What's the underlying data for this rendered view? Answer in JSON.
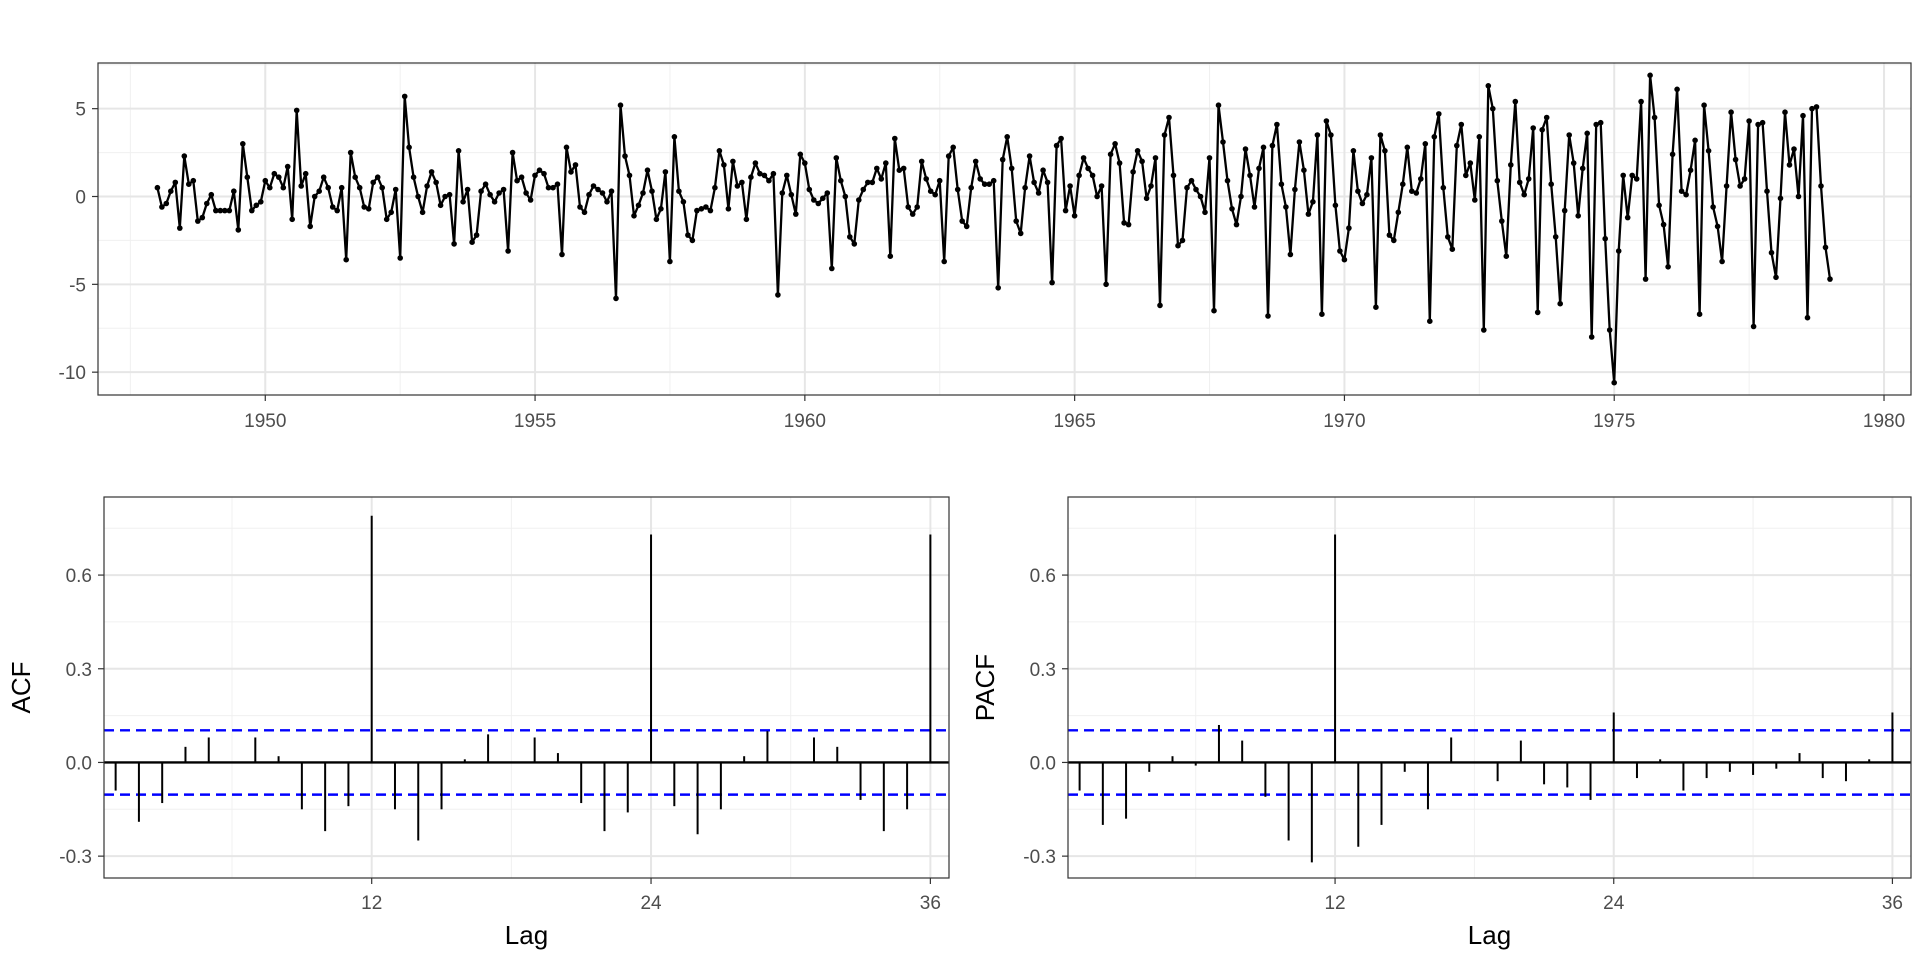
{
  "chart_data": [
    {
      "id": "timeseries",
      "type": "line",
      "title": "",
      "xlabel": "",
      "ylabel": "",
      "x_start": 1948.0,
      "x_step": 0.08333,
      "xlim": [
        1946.9,
        1980.5
      ],
      "ylim": [
        -11.3,
        7.6
      ],
      "xticks": [
        "1950",
        "1955",
        "1960",
        "1965",
        "1970",
        "1975",
        "1980"
      ],
      "xtick_values": [
        1950,
        1955,
        1960,
        1965,
        1970,
        1975,
        1980
      ],
      "yticks": [
        "5",
        "0",
        "-5",
        "-10"
      ],
      "ytick_values": [
        5,
        0,
        -5,
        -10
      ],
      "grid": true,
      "line_color": "#000000",
      "values": [
        0.5,
        -0.6,
        -0.4,
        0.3,
        0.8,
        -1.8,
        2.3,
        0.7,
        0.9,
        -1.4,
        -1.2,
        -0.4,
        0.1,
        -0.8,
        -0.8,
        -0.8,
        -0.8,
        0.3,
        -1.9,
        3.0,
        1.1,
        -0.8,
        -0.5,
        -0.3,
        0.9,
        0.5,
        1.3,
        1.1,
        0.5,
        1.7,
        -1.3,
        4.9,
        0.6,
        1.3,
        -1.7,
        0.0,
        0.3,
        1.1,
        0.5,
        -0.6,
        -0.8,
        0.5,
        -3.6,
        2.5,
        1.1,
        0.5,
        -0.6,
        -0.7,
        0.8,
        1.1,
        0.5,
        -1.3,
        -0.9,
        0.4,
        -3.5,
        5.7,
        2.8,
        1.1,
        0.0,
        -0.9,
        0.6,
        1.4,
        0.8,
        -0.5,
        0.0,
        0.1,
        -2.7,
        2.6,
        -0.3,
        0.4,
        -2.6,
        -2.2,
        0.3,
        0.7,
        0.1,
        -0.3,
        0.2,
        0.4,
        -3.1,
        2.5,
        0.9,
        1.1,
        0.2,
        -0.2,
        1.2,
        1.5,
        1.3,
        0.5,
        0.5,
        0.7,
        -3.3,
        2.8,
        1.4,
        1.8,
        -0.6,
        -0.9,
        0.1,
        0.6,
        0.4,
        0.2,
        -0.3,
        0.3,
        -5.8,
        5.2,
        2.3,
        1.2,
        -1.1,
        -0.5,
        0.2,
        1.5,
        0.3,
        -1.3,
        -0.7,
        1.4,
        -3.7,
        3.4,
        0.3,
        -0.3,
        -2.2,
        -2.5,
        -0.8,
        -0.7,
        -0.6,
        -0.8,
        0.5,
        2.6,
        1.8,
        -0.7,
        2.0,
        0.6,
        0.8,
        -1.3,
        1.1,
        1.9,
        1.3,
        1.2,
        0.9,
        1.3,
        -5.6,
        0.2,
        1.2,
        0.1,
        -1.0,
        2.4,
        1.9,
        0.4,
        -0.2,
        -0.4,
        -0.1,
        0.2,
        -4.1,
        2.2,
        0.9,
        0.0,
        -2.3,
        -2.7,
        -0.2,
        0.4,
        0.8,
        0.8,
        1.6,
        1.0,
        1.9,
        -3.4,
        3.3,
        1.5,
        1.6,
        -0.6,
        -1.0,
        -0.6,
        2.0,
        1.0,
        0.3,
        0.1,
        0.9,
        -3.7,
        2.3,
        2.8,
        0.4,
        -1.4,
        -1.7,
        0.5,
        2.0,
        1.0,
        0.7,
        0.7,
        0.9,
        -5.2,
        2.1,
        3.4,
        1.6,
        -1.4,
        -2.1,
        0.5,
        2.3,
        0.8,
        0.2,
        1.5,
        0.8,
        -4.9,
        2.9,
        3.3,
        -0.8,
        0.6,
        -1.1,
        1.2,
        2.2,
        1.6,
        1.2,
        0.0,
        0.6,
        -5.0,
        2.4,
        3.0,
        1.9,
        -1.5,
        -1.6,
        1.4,
        2.6,
        2.0,
        -0.1,
        0.6,
        2.2,
        -6.2,
        3.5,
        4.5,
        1.2,
        -2.8,
        -2.5,
        0.5,
        0.9,
        0.4,
        0.0,
        -0.9,
        2.2,
        -6.5,
        5.2,
        3.1,
        0.9,
        -0.7,
        -1.6,
        0.0,
        2.7,
        1.2,
        -0.6,
        1.6,
        2.8,
        -6.8,
        2.9,
        4.1,
        0.7,
        -0.6,
        -3.3,
        0.4,
        3.1,
        1.5,
        -1.0,
        -0.3,
        3.5,
        -6.7,
        4.3,
        3.5,
        -0.5,
        -3.1,
        -3.6,
        -1.8,
        2.6,
        0.3,
        -0.4,
        0.1,
        2.2,
        -6.3,
        3.5,
        2.6,
        -2.2,
        -2.5,
        -0.9,
        0.7,
        2.8,
        0.3,
        0.2,
        1.0,
        3.0,
        -7.1,
        3.4,
        4.7,
        0.5,
        -2.3,
        -3.0,
        2.9,
        4.1,
        1.2,
        1.9,
        -0.2,
        3.4,
        -7.6,
        6.3,
        5.0,
        0.9,
        -1.4,
        -3.4,
        1.8,
        5.4,
        0.8,
        0.1,
        1.0,
        3.9,
        -6.6,
        3.8,
        4.5,
        0.7,
        -2.3,
        -6.1,
        -0.8,
        3.5,
        1.9,
        -1.1,
        1.6,
        3.6,
        -8.0,
        4.1,
        4.2,
        -2.4,
        -7.6,
        -10.6,
        -3.1,
        1.2,
        -1.2,
        1.2,
        1.0,
        5.4,
        -4.7,
        6.9,
        4.5,
        -0.5,
        -1.6,
        -4.0,
        2.4,
        6.1,
        0.3,
        0.1,
        1.5,
        3.2,
        -6.7,
        5.2,
        2.6,
        -0.6,
        -1.7,
        -3.7,
        0.6,
        4.8,
        2.1,
        0.6,
        1.0,
        4.3,
        -7.4,
        4.1,
        4.2,
        0.3,
        -3.2,
        -4.6,
        -0.1,
        4.8,
        1.8,
        2.7,
        0.0,
        4.6,
        -6.9,
        5.0,
        5.1,
        0.6,
        -2.9,
        -4.7
      ]
    },
    {
      "id": "acf",
      "type": "bar",
      "title": "",
      "xlabel": "Lag",
      "ylabel": "ACF",
      "xlim": [
        0.5,
        36.8
      ],
      "ylim": [
        -0.37,
        0.85
      ],
      "xticks": [
        "12",
        "24",
        "36"
      ],
      "xtick_values": [
        12,
        24,
        36
      ],
      "yticks": [
        "0.6",
        "0.3",
        "0.0",
        "-0.3"
      ],
      "ytick_values": [
        0.6,
        0.3,
        0.0,
        -0.3
      ],
      "lags": [
        1,
        2,
        3,
        4,
        5,
        6,
        7,
        8,
        9,
        10,
        11,
        12,
        13,
        14,
        15,
        16,
        17,
        18,
        19,
        20,
        21,
        22,
        23,
        24,
        25,
        26,
        27,
        28,
        29,
        30,
        31,
        32,
        33,
        34,
        35,
        36
      ],
      "values": [
        -0.09,
        -0.19,
        -0.13,
        0.05,
        0.08,
        0.0,
        0.08,
        0.02,
        -0.15,
        -0.22,
        -0.14,
        0.79,
        -0.15,
        -0.25,
        -0.15,
        0.01,
        0.09,
        0.0,
        0.08,
        0.03,
        -0.13,
        -0.22,
        -0.16,
        0.73,
        -0.14,
        -0.23,
        -0.15,
        0.02,
        0.1,
        0.0,
        0.08,
        0.05,
        -0.12,
        -0.22,
        -0.15,
        0.73
      ],
      "ci": 0.103,
      "ci_color": "#0000ff",
      "grid": true
    },
    {
      "id": "pacf",
      "type": "bar",
      "title": "",
      "xlabel": "Lag",
      "ylabel": "PACF",
      "xlim": [
        0.5,
        36.8
      ],
      "ylim": [
        -0.37,
        0.85
      ],
      "xticks": [
        "12",
        "24",
        "36"
      ],
      "xtick_values": [
        12,
        24,
        36
      ],
      "yticks": [
        "0.6",
        "0.3",
        "0.0",
        "-0.3"
      ],
      "ytick_values": [
        0.6,
        0.3,
        0.0,
        -0.3
      ],
      "lags": [
        1,
        2,
        3,
        4,
        5,
        6,
        7,
        8,
        9,
        10,
        11,
        12,
        13,
        14,
        15,
        16,
        17,
        18,
        19,
        20,
        21,
        22,
        23,
        24,
        25,
        26,
        27,
        28,
        29,
        30,
        31,
        32,
        33,
        34,
        35,
        36
      ],
      "values": [
        -0.09,
        -0.2,
        -0.18,
        -0.03,
        0.02,
        -0.01,
        0.12,
        0.07,
        -0.11,
        -0.25,
        -0.32,
        0.73,
        -0.27,
        -0.2,
        -0.03,
        -0.15,
        0.08,
        0.0,
        -0.06,
        0.07,
        -0.07,
        -0.08,
        -0.12,
        0.16,
        -0.05,
        0.01,
        -0.09,
        -0.05,
        -0.03,
        -0.04,
        -0.02,
        0.03,
        -0.05,
        -0.06,
        0.01,
        0.16
      ],
      "ci": 0.103,
      "ci_color": "#0000ff",
      "grid": true
    }
  ]
}
